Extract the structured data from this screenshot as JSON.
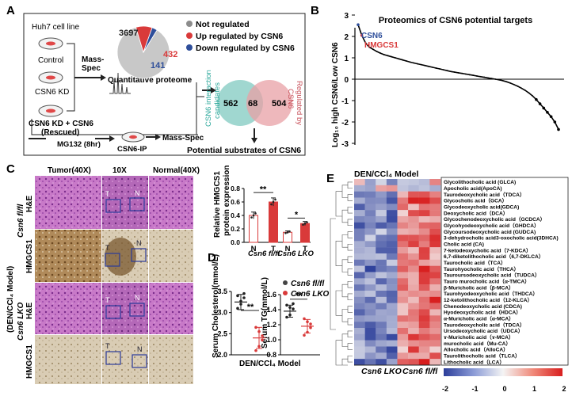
{
  "panelA": {
    "letter": "A",
    "cell_line": "Huh7 cell line",
    "control": "Control",
    "kd": "CSN6 KD",
    "rescue": [
      "CSN6 KD + CSN6",
      "(Rescued)"
    ],
    "massspec": [
      "Mass-",
      "Spec"
    ],
    "quant": "Quantitative proteome",
    "mg132": "MG132 (8hr)",
    "ip": "CSN6-IP",
    "massspec2": "Mass-Spec",
    "substrates": "Potential substrates of CSN6",
    "legend": [
      {
        "label": "Not regulated",
        "color": "#8c8c8c"
      },
      {
        "label": "Up regulated by CSN6",
        "color": "#d93a3a"
      },
      {
        "label": "Down regulated by CSN6",
        "color": "#2e4e9a"
      }
    ],
    "pie_counts": {
      "not": "3697",
      "up": "432",
      "down": "141"
    },
    "venn": {
      "left": "562",
      "mid": "68",
      "right": "504",
      "left_label": [
        "CSN6 interaction",
        "candidates"
      ],
      "right_label": [
        "Regulated by",
        "CSN6"
      ]
    }
  },
  "panelB": {
    "letter": "B",
    "title": "Proteomics of CSN6 potential targets",
    "ylabel": "Log₁₀ high CSN6/Low CSN6",
    "highlight1": "CSN6",
    "highlight2": "HMGCS1",
    "yticks": [
      "3",
      "2",
      "1",
      "0",
      "-1",
      "-2",
      "-3"
    ]
  },
  "panelC": {
    "letter": "C",
    "cols": [
      "Tumor(40X)",
      "10X",
      "Normal(40X)"
    ],
    "rows": [
      "H&E",
      "HMGCS1",
      "H&E",
      "HMGCS1"
    ],
    "group_top": "Csn6 fl/fl",
    "group_bottom": "Csn6 LKO",
    "side_label": "(DEN/CCl₄ Model)",
    "mark_T": "T",
    "mark_N": "N"
  },
  "barC": {
    "ylabel": [
      "Relative HMGCS1",
      "protein expression"
    ],
    "yticks": [
      "0.0",
      "0.2",
      "0.4",
      "0.6",
      "0.8"
    ],
    "xticks": [
      "N",
      "T",
      "N",
      "T"
    ],
    "groups": [
      "Csn6 fl/fl",
      "Csn6 LKO"
    ],
    "sig": [
      "**",
      "*"
    ]
  },
  "panelD": {
    "letter": "D",
    "model": "DEN/CCl₄ Model",
    "chol_ylabel": "Serum Cholesterol(mmol/L)",
    "chol_yticks": [
      "3.5",
      "3.0",
      "2.5",
      "2.0"
    ],
    "tg_ylabel": "Serum TG(mmol/L)",
    "tg_yticks": [
      "1.6",
      "1.4",
      "1.2",
      "1.0",
      "0.8"
    ],
    "legend": [
      "Csn6 fl/fl",
      "Csn6 LKO"
    ],
    "sig": "**"
  },
  "panelE": {
    "letter": "E",
    "title": "DEN/CCl₄ Model",
    "xgroups": [
      "Csn6 LKO",
      "Csn6 fl/fl"
    ],
    "colorbar_ticks": [
      "-2",
      "-1",
      "0",
      "1",
      "2"
    ],
    "metabolites": [
      "Glycolithocholic acid (GLCA)",
      "Apocholic acid(ApoCA)",
      "Taurodeoxycholic acid（TDCA）",
      "Glycocholic acid（GCA）",
      "Glycodeoxycholic acid(GDCA)",
      "Deoxycholic acid（DCA）",
      "Glycochenodeoxycholic acid（GCDCA）",
      "Glycohyodeoxycholic acid（GHDCA）",
      "Glycoursodeoxycholic acid (GUDCA)",
      "3-dehydrocholic acid3-oxocholic acid(3DHCA)",
      "Cholic acid (CA)",
      "7-ketodeoxycholic acid（7-KDCA）",
      "6,7-diketolithocholic acid（6,7-DKLCA）",
      "Taurocholic acid（TCA）",
      "Taurohyocholic acid（THCA）",
      "Tauroursodeoxycholic acid（TUDCA）",
      "Tauro murocholic acid（α-TMCA）",
      "β-Muricholic acid（β-MCA）",
      "Taurohyodeoxycholic acid（THDCA）",
      "12-ketolithocholic acid（12-KLCA）",
      "Chenodeoxycholic acid (CDCA)",
      "Hyodeoxycholic acid（HDCA）",
      "α-Muricholic acid（α-MCA）",
      "Taurodeoxycholic acid（TDCA）",
      "Ursodeoxycholic acid（UDCA）",
      "ɤ-Muricholic acid（ɤ-MCA）",
      "murocholic acid（Mu-CA）",
      "Allocholic acid（AlloCA）",
      "Taurolithocholic acid（TLCA）",
      "Lithocholic acid（LCA）"
    ]
  },
  "chart_data": [
    {
      "type": "pie",
      "categories": [
        "Not regulated",
        "Up regulated by CSN6",
        "Down regulated by CSN6"
      ],
      "values": [
        3697,
        432,
        141
      ],
      "colors": [
        "#c8c8c8",
        "#d93a3a",
        "#2e4e9a"
      ]
    },
    {
      "type": "scatter",
      "title": "Proteomics of CSN6 potential targets",
      "ylabel": "Log₁₀ high CSN6/Low CSN6",
      "ylim": [
        -3,
        3
      ],
      "y": [
        2.55,
        2.05,
        1.7,
        1.5,
        1.4,
        1.3,
        1.22,
        1.15,
        1.1,
        1.05,
        1.0,
        0.95,
        0.9,
        0.85,
        0.8,
        0.76,
        0.72,
        0.68,
        0.64,
        0.6,
        0.56,
        0.52,
        0.48,
        0.44,
        0.4,
        0.36,
        0.33,
        0.3,
        0.27,
        0.24,
        0.21,
        0.18,
        0.15,
        0.12,
        0.09,
        0.06,
        0.03,
        0.0,
        -0.03,
        -0.07,
        -0.12,
        -0.18,
        -0.25,
        -0.33,
        -0.42,
        -0.52,
        -0.64,
        -0.78,
        -0.95,
        -1.15,
        -1.35,
        -1.55,
        -1.75,
        -2.0,
        -2.35
      ],
      "highlighted": [
        "CSN6",
        "HMGCS1"
      ]
    },
    {
      "type": "bar",
      "categories": [
        "Csn6 fl/fl N",
        "Csn6 fl/fl T",
        "Csn6 LKO N",
        "Csn6 LKO T"
      ],
      "values": [
        0.4,
        0.6,
        0.15,
        0.28
      ],
      "errors": [
        0.05,
        0.06,
        0.02,
        0.03
      ],
      "ylabel": "Relative HMGCS1 protein expression",
      "ylim": [
        0,
        0.8
      ],
      "colors": [
        "#ffffff",
        "#d93a3a",
        "#ffffff",
        "#d93a3a"
      ]
    },
    {
      "type": "bar",
      "categories": [
        "Csn6 fl/fl",
        "Csn6 LKO"
      ],
      "values": [
        3.25,
        2.4
      ],
      "errors": [
        0.18,
        0.25
      ],
      "ylabel": "Serum Cholesterol(mmol/L)",
      "ylim": [
        2.0,
        3.5
      ]
    },
    {
      "type": "bar",
      "categories": [
        "Csn6 fl/fl",
        "Csn6 LKO"
      ],
      "values": [
        1.38,
        1.18
      ],
      "errors": [
        0.08,
        0.09
      ],
      "ylabel": "Serum TG(mmol/L)",
      "ylim": [
        0.8,
        1.6
      ]
    },
    {
      "type": "heatmap",
      "x_groups": [
        "Csn6 LKO",
        "Csn6 fl/fl"
      ],
      "columns_per_group": 4,
      "color_range": [
        -2,
        2
      ],
      "rows": 30
    }
  ]
}
